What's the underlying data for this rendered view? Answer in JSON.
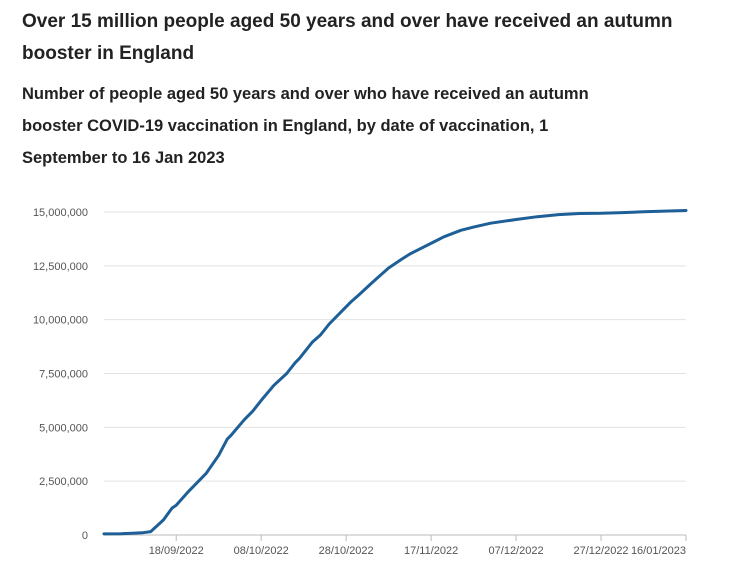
{
  "headline": "Over 15 million people aged 50 years and over have received an autumn booster in England",
  "chart_data": {
    "type": "line",
    "title": "Number of people aged 50 years and over who have received an autumn booster COVID-19 vaccination in England, by date of vaccination, 1 September to 16 Jan 2023",
    "xlabel": "",
    "ylabel": "",
    "grid": true,
    "line_color": "#1d5f96",
    "x_ticks": [
      "18/09/2022",
      "08/10/2022",
      "28/10/2022",
      "17/11/2022",
      "07/12/2022",
      "27/12/2022",
      "16/01/2023"
    ],
    "y_ticks": [
      "0",
      "2,500,000",
      "5,000,000",
      "7,500,000",
      "10,000,000",
      "12,500,000",
      "15,000,000"
    ],
    "ylim": [
      0,
      15000000
    ],
    "xlim": [
      "01/09/2022",
      "16/01/2023"
    ],
    "series": [
      {
        "x": [
          "01/09/2022",
          "05/09/2022",
          "10/09/2022",
          "12/09/2022",
          "15/09/2022",
          "17/09/2022",
          "18/09/2022",
          "21/09/2022",
          "24/09/2022",
          "25/09/2022",
          "28/09/2022",
          "30/09/2022",
          "01/10/2022",
          "04/10/2022",
          "06/10/2022",
          "08/10/2022",
          "11/10/2022",
          "14/10/2022",
          "16/10/2022",
          "17/10/2022",
          "20/10/2022",
          "22/10/2022",
          "24/10/2022",
          "27/10/2022",
          "29/10/2022",
          "31/10/2022",
          "03/11/2022",
          "05/11/2022",
          "07/11/2022",
          "10/11/2022",
          "12/11/2022",
          "14/11/2022",
          "18/11/2022",
          "20/11/2022",
          "24/11/2022",
          "27/11/2022",
          "01/12/2022",
          "07/12/2022",
          "12/12/2022",
          "17/12/2022",
          "22/12/2022",
          "27/12/2022",
          "01/01/2023",
          "06/01/2023",
          "11/01/2023",
          "16/01/2023"
        ],
        "values": [
          50000,
          60000,
          100000,
          160000,
          700000,
          1250000,
          1380000,
          2050000,
          2650000,
          2850000,
          3700000,
          4450000,
          4650000,
          5350000,
          5750000,
          6250000,
          6950000,
          7500000,
          8000000,
          8200000,
          8950000,
          9300000,
          9800000,
          10400000,
          10800000,
          11150000,
          11700000,
          12050000,
          12400000,
          12800000,
          13050000,
          13250000,
          13650000,
          13850000,
          14150000,
          14300000,
          14480000,
          14650000,
          14780000,
          14880000,
          14930000,
          14940000,
          14970000,
          15010000,
          15040000,
          15070000
        ]
      }
    ]
  }
}
